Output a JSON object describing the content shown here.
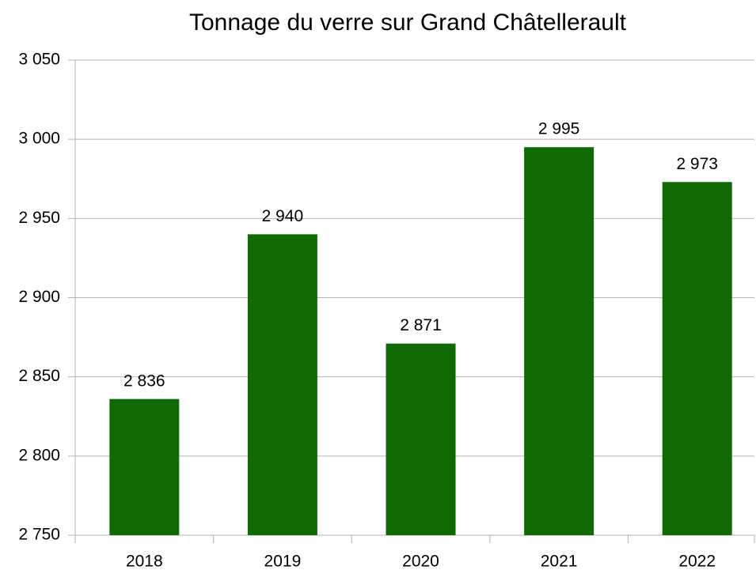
{
  "chart_data": {
    "type": "bar",
    "title": "Tonnage du verre sur Grand Châtellerault",
    "categories": [
      "2018",
      "2019",
      "2020",
      "2021",
      "2022"
    ],
    "values": [
      2836,
      2940,
      2871,
      2995,
      2973
    ],
    "value_labels": [
      "2 836",
      "2 940",
      "2 871",
      "2 995",
      "2 973"
    ],
    "color": "#106a03",
    "ylim": [
      2750,
      3050
    ],
    "yticks": [
      {
        "value": 2750,
        "label": "2 750"
      },
      {
        "value": 2800,
        "label": "2 800"
      },
      {
        "value": 2850,
        "label": "2 850"
      },
      {
        "value": 2900,
        "label": "2 900"
      },
      {
        "value": 2950,
        "label": "2 950"
      },
      {
        "value": 3000,
        "label": "3 000"
      },
      {
        "value": 3050,
        "label": "3 050"
      }
    ],
    "grid": true
  }
}
